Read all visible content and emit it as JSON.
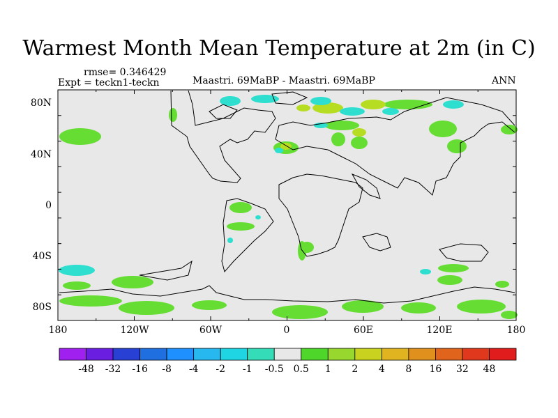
{
  "chart_data": {
    "type": "map",
    "title": "Warmest Month Mean Temperature at 2m (in C)",
    "rmse_label": "rmse= 0.346429",
    "expt_label": "Expt = teckn1-teckn",
    "center_label": "Maastri.  69MaBP - Maastri.  69MaBP",
    "period_label": "ANN",
    "x_ticks": [
      "180",
      "120W",
      "60W",
      "0",
      "60E",
      "120E",
      "180"
    ],
    "y_ticks": [
      "80N",
      "40N",
      "0",
      "40S",
      "80S"
    ],
    "colorbar": {
      "labels": [
        "-48",
        "-32",
        "-16",
        "-8",
        "-4",
        "-2",
        "-1",
        "-0.5",
        "0.5",
        "1",
        "2",
        "4",
        "8",
        "16",
        "32",
        "48"
      ],
      "colors": [
        "#a020f0",
        "#6a1fe0",
        "#2841d4",
        "#1f6fe0",
        "#1e90ff",
        "#27b8ef",
        "#1fd5e4",
        "#34ddb8",
        "#e8e8e8",
        "#4fd62b",
        "#98d82e",
        "#c8d21f",
        "#e0b420",
        "#e0901c",
        "#e0641c",
        "#e0381c",
        "#e01c1c"
      ]
    },
    "contour_colors": {
      "background": "#e8e8e8",
      "positive_small": "#66dd33",
      "positive_mid": "#b7dd22",
      "negative_small": "#2edfd0"
    }
  }
}
